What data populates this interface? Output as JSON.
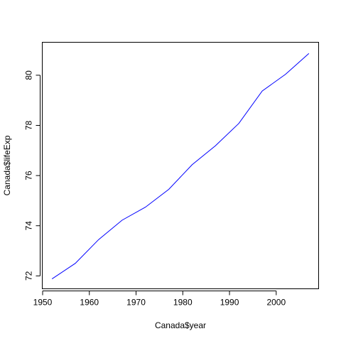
{
  "chart_data": {
    "type": "line",
    "title": "",
    "xlabel": "Canada$year",
    "ylabel": "Canada$lifeExp",
    "xlim": [
      1950,
      2009
    ],
    "ylim": [
      71.5,
      81.3
    ],
    "xticks": [
      1950,
      1960,
      1970,
      1980,
      1990,
      2000
    ],
    "xtick_labels": [
      "1950",
      "1960",
      "1970",
      "1980",
      "1990",
      "2000"
    ],
    "yticks": [
      72,
      74,
      76,
      78,
      80
    ],
    "ytick_labels": [
      "72",
      "74",
      "76",
      "78",
      "80"
    ],
    "grid": false,
    "legend": "none",
    "series": [
      {
        "color": "#0000ff",
        "x": [
          1952,
          1957,
          1962,
          1967,
          1972,
          1977,
          1982,
          1987,
          1992,
          1997,
          2002,
          2007
        ],
        "y": [
          71.88,
          72.5,
          73.45,
          74.22,
          74.74,
          75.45,
          76.43,
          77.19,
          78.08,
          79.37,
          80.04,
          80.87
        ]
      }
    ]
  }
}
